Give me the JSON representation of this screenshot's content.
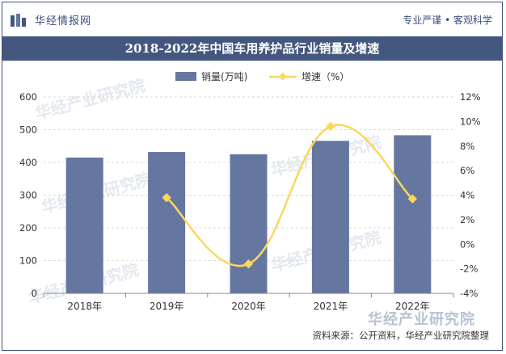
{
  "header": {
    "logo_text": "华经情报网",
    "tagline": "专业严谨 • 客观科学"
  },
  "watermark": {
    "text": "华经产业研究院",
    "corner_text": "华经产业研究院"
  },
  "chart_data": {
    "type": "bar+line",
    "title": "2018-2022年中国车用养护品行业销量及增速",
    "categories": [
      "2018年",
      "2019年",
      "2020年",
      "2021年",
      "2022年"
    ],
    "series": [
      {
        "name": "销量(万吨)",
        "type": "bar",
        "axis": "left",
        "color": "#6577a0",
        "values": [
          415,
          432,
          425,
          466,
          483
        ]
      },
      {
        "name": "增速（%）",
        "type": "line",
        "axis": "right",
        "color": "#fbd75e",
        "values": [
          null,
          3.8,
          -1.6,
          9.6,
          3.7
        ]
      }
    ],
    "y_left": {
      "min": 0,
      "max": 600,
      "ticks": [
        "0",
        "100",
        "200",
        "300",
        "400",
        "500",
        "600"
      ]
    },
    "y_right": {
      "min": -4,
      "max": 12,
      "ticks": [
        "-4%",
        "-2%",
        "0%",
        "2%",
        "4%",
        "6%",
        "8%",
        "10%",
        "12%"
      ]
    },
    "grid": true,
    "legend_position": "top-center"
  },
  "source": "资料来源：公开资料，华经产业研究院整理",
  "colors": {
    "bar": "#6577a0",
    "line": "#fbd75e",
    "title_bg": "#44577f",
    "brand": "#3a4e7c"
  }
}
